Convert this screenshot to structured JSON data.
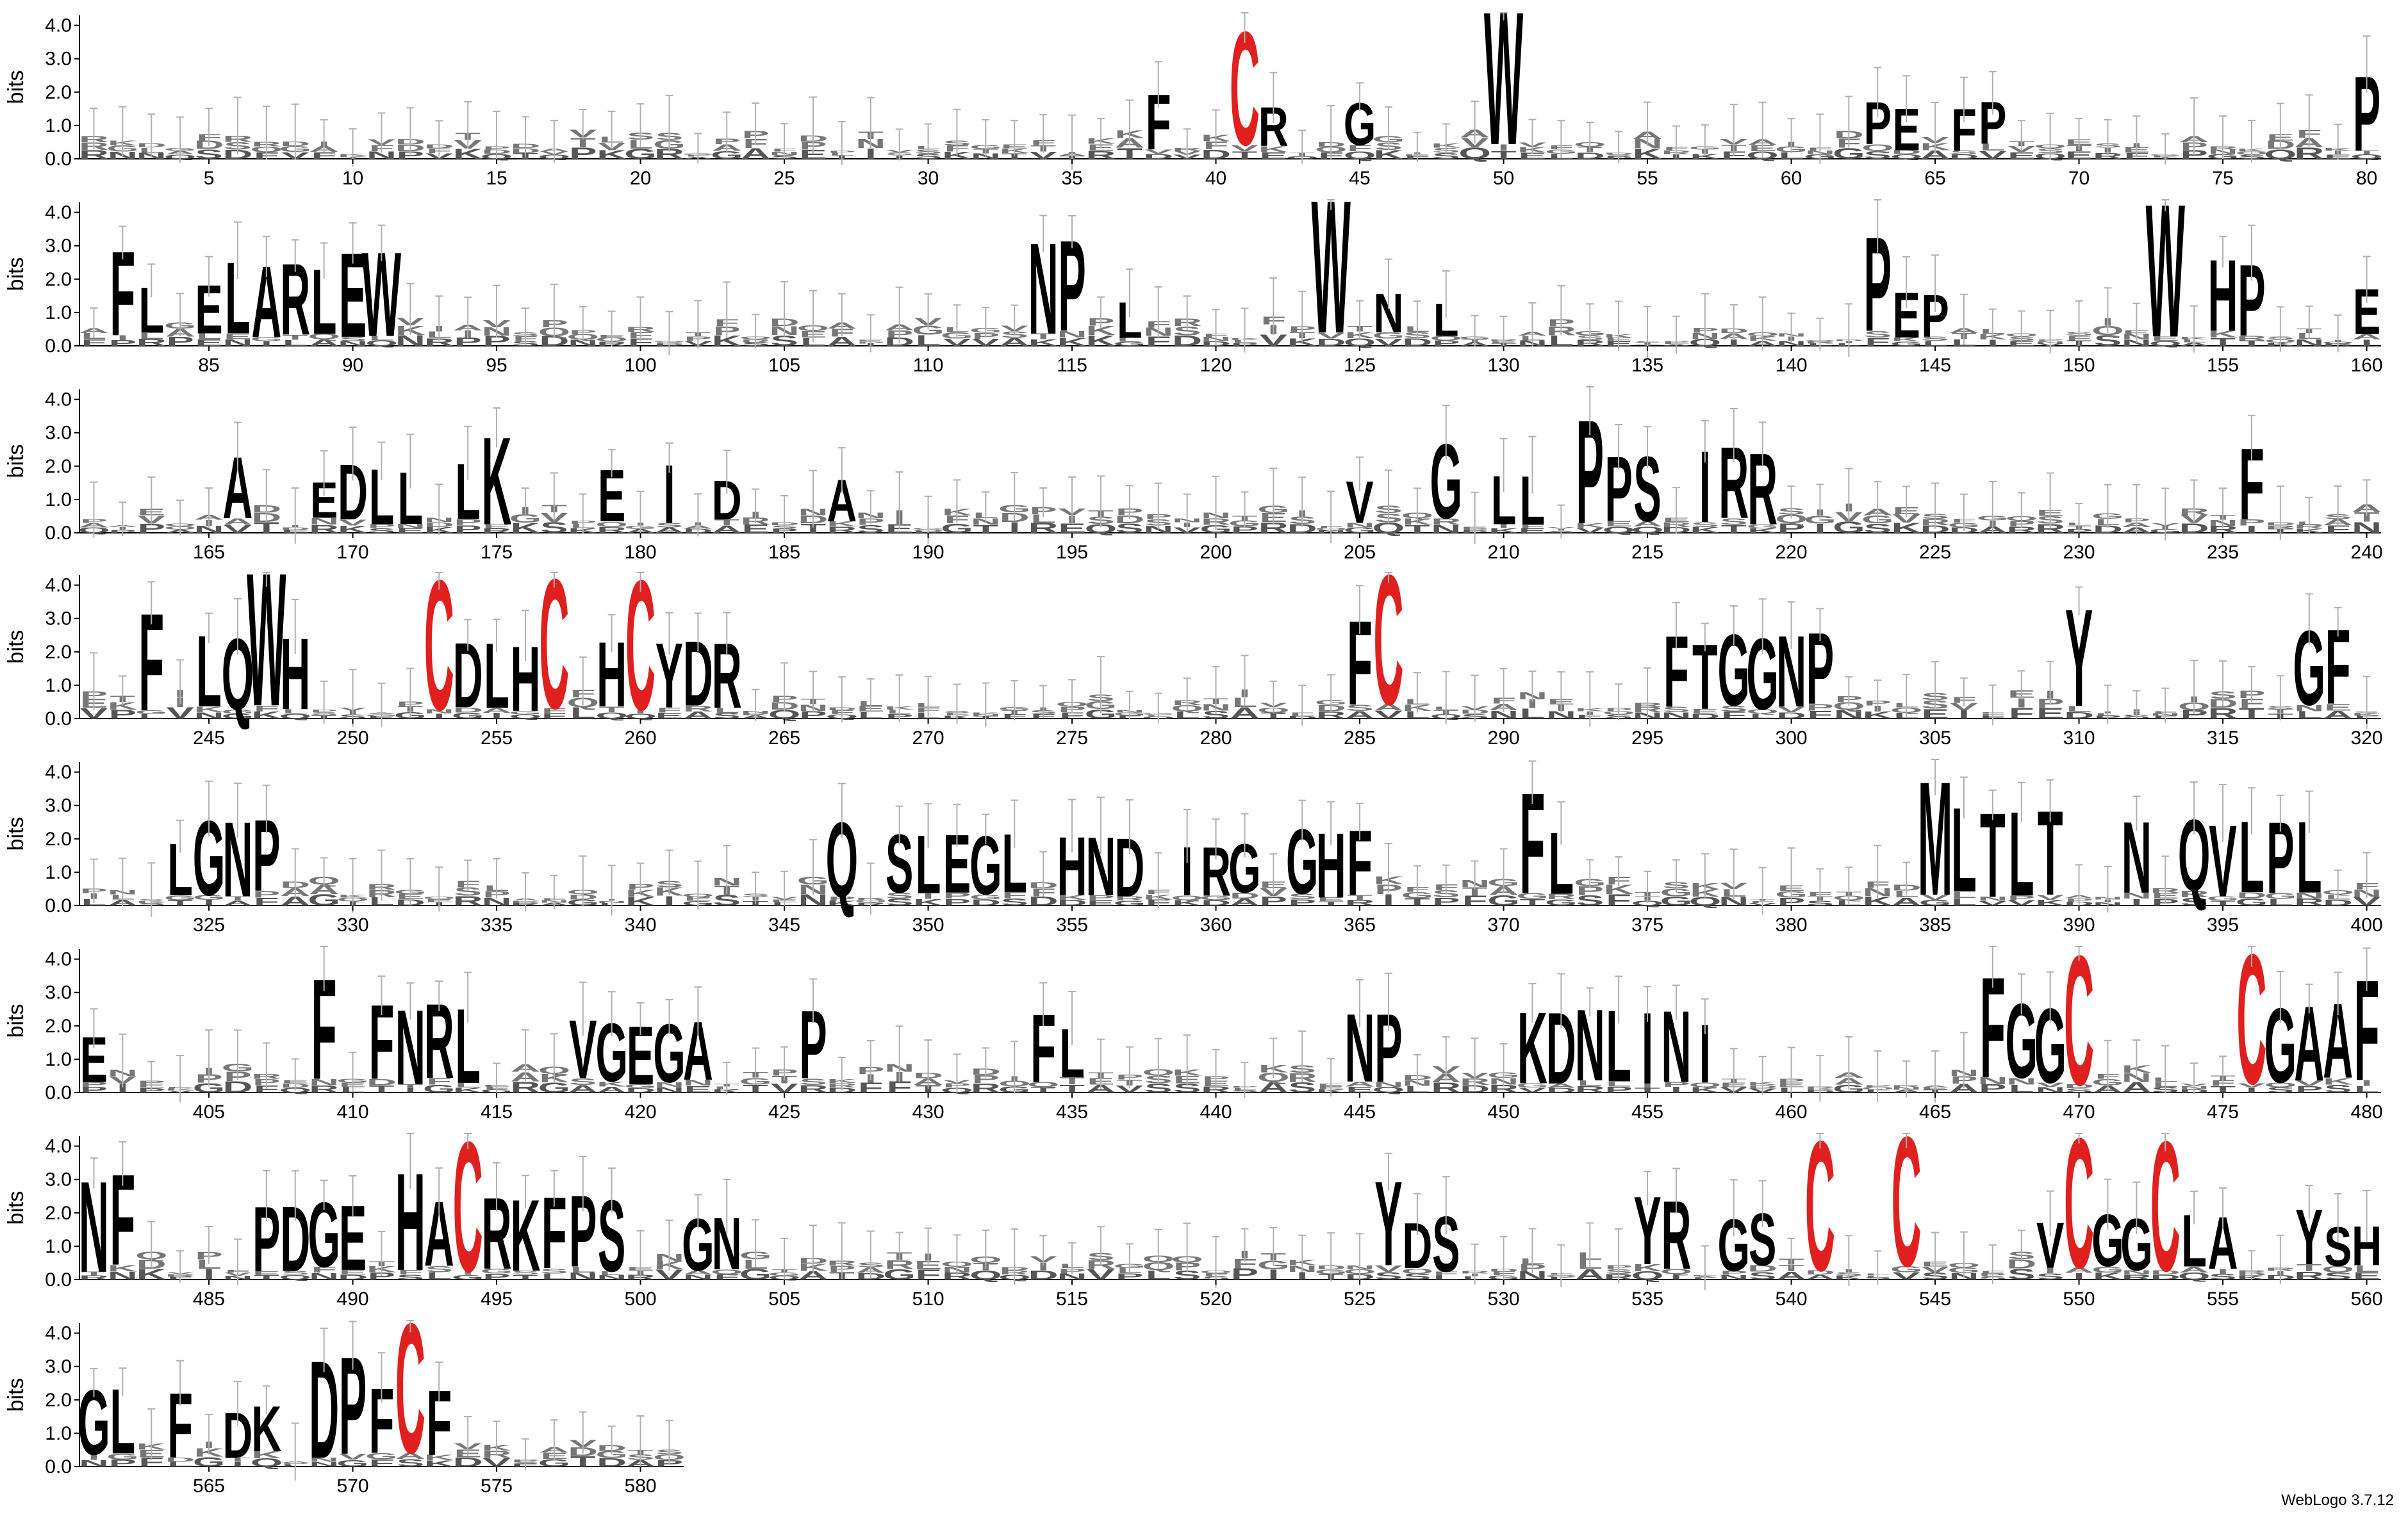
{
  "chart_data": {
    "type": "sequence-logo",
    "ylabel": "bits",
    "ylim": [
      0,
      4.3
    ],
    "y_ticks": [
      "0.0",
      "1.0",
      "2.0",
      "3.0",
      "4.0"
    ],
    "x_range": [
      1,
      581
    ],
    "rows": [
      {
        "start": 1,
        "end": 80
      },
      {
        "start": 81,
        "end": 160
      },
      {
        "start": 161,
        "end": 240
      },
      {
        "start": 241,
        "end": 320
      },
      {
        "start": 321,
        "end": 400
      },
      {
        "start": 401,
        "end": 480
      },
      {
        "start": 481,
        "end": 560
      },
      {
        "start": 561,
        "end": 581
      }
    ],
    "x_tick_labels": [
      "5",
      "10",
      "15",
      "20",
      "25",
      "30",
      "35",
      "40",
      "45",
      "50",
      "55",
      "60",
      "65",
      "70",
      "75",
      "80",
      "85",
      "90",
      "95",
      "100",
      "105",
      "110",
      "115",
      "120",
      "125",
      "130",
      "135",
      "140",
      "145",
      "150",
      "155",
      "160",
      "165",
      "170",
      "175",
      "180",
      "185",
      "190",
      "195",
      "200",
      "205",
      "210",
      "215",
      "220",
      "225",
      "230",
      "235",
      "240",
      "245",
      "250",
      "255",
      "260",
      "265",
      "270",
      "275",
      "280",
      "285",
      "290",
      "295",
      "300",
      "305",
      "310",
      "315",
      "320",
      "325",
      "330",
      "335",
      "340",
      "345",
      "350",
      "355",
      "360",
      "365",
      "370",
      "375",
      "380",
      "385",
      "390",
      "395",
      "400",
      "405",
      "410",
      "415",
      "420",
      "425",
      "430",
      "435",
      "440",
      "445",
      "450",
      "455",
      "460",
      "465",
      "470",
      "475",
      "480",
      "485",
      "490",
      "495",
      "500",
      "505",
      "510",
      "515",
      "520",
      "525",
      "530",
      "535",
      "540",
      "545",
      "550",
      "555",
      "560",
      "565",
      "570",
      "575",
      "580"
    ],
    "colors": {
      "default": "#000000",
      "cysteine": "#e0201e",
      "errorbar": "#b0b0b0"
    },
    "major_letters": [
      {
        "pos": 38,
        "letter": "F",
        "bits": 1.7
      },
      {
        "pos": 41,
        "letter": "C",
        "bits": 3.5
      },
      {
        "pos": 42,
        "letter": "R",
        "bits": 1.2
      },
      {
        "pos": 45,
        "letter": "G",
        "bits": 1.3
      },
      {
        "pos": 50,
        "letter": "W",
        "bits": 4.1
      },
      {
        "pos": 63,
        "letter": "P",
        "bits": 1.3
      },
      {
        "pos": 64,
        "letter": "E",
        "bits": 1.3
      },
      {
        "pos": 66,
        "letter": "F",
        "bits": 1.3
      },
      {
        "pos": 67,
        "letter": "P",
        "bits": 1.3
      },
      {
        "pos": 80,
        "letter": "P",
        "bits": 2.3
      },
      {
        "pos": 82,
        "letter": "F",
        "bits": 2.6
      },
      {
        "pos": 83,
        "letter": "L",
        "bits": 1.4
      },
      {
        "pos": 85,
        "letter": "E",
        "bits": 1.5
      },
      {
        "pos": 86,
        "letter": "L",
        "bits": 2.2
      },
      {
        "pos": 87,
        "letter": "A",
        "bits": 2.2
      },
      {
        "pos": 88,
        "letter": "R",
        "bits": 2.2
      },
      {
        "pos": 89,
        "letter": "L",
        "bits": 2.0
      },
      {
        "pos": 90,
        "letter": "E",
        "bits": 2.6
      },
      {
        "pos": 91,
        "letter": "W",
        "bits": 2.6
      },
      {
        "pos": 114,
        "letter": "N",
        "bits": 2.8
      },
      {
        "pos": 115,
        "letter": "P",
        "bits": 2.8
      },
      {
        "pos": 117,
        "letter": "L",
        "bits": 1.1
      },
      {
        "pos": 124,
        "letter": "W",
        "bits": 4.1
      },
      {
        "pos": 126,
        "letter": "N",
        "bits": 1.2
      },
      {
        "pos": 128,
        "letter": "L",
        "bits": 1.0
      },
      {
        "pos": 143,
        "letter": "P",
        "bits": 2.9
      },
      {
        "pos": 144,
        "letter": "E",
        "bits": 1.4
      },
      {
        "pos": 145,
        "letter": "P",
        "bits": 1.3
      },
      {
        "pos": 153,
        "letter": "W",
        "bits": 4.1
      },
      {
        "pos": 155,
        "letter": "H",
        "bits": 2.2
      },
      {
        "pos": 156,
        "letter": "P",
        "bits": 2.2
      },
      {
        "pos": 160,
        "letter": "E",
        "bits": 1.4
      },
      {
        "pos": 166,
        "letter": "A",
        "bits": 1.9
      },
      {
        "pos": 169,
        "letter": "E",
        "bits": 1.1
      },
      {
        "pos": 170,
        "letter": "D",
        "bits": 1.7
      },
      {
        "pos": 171,
        "letter": "L",
        "bits": 1.7
      },
      {
        "pos": 172,
        "letter": "L",
        "bits": 1.6
      },
      {
        "pos": 174,
        "letter": "L",
        "bits": 1.7
      },
      {
        "pos": 175,
        "letter": "K",
        "bits": 2.7
      },
      {
        "pos": 179,
        "letter": "E",
        "bits": 1.6
      },
      {
        "pos": 181,
        "letter": "I",
        "bits": 1.8
      },
      {
        "pos": 183,
        "letter": "D",
        "bits": 1.2
      },
      {
        "pos": 187,
        "letter": "A",
        "bits": 1.3
      },
      {
        "pos": 205,
        "letter": "V",
        "bits": 1.3
      },
      {
        "pos": 208,
        "letter": "G",
        "bits": 2.3
      },
      {
        "pos": 210,
        "letter": "L",
        "bits": 1.5
      },
      {
        "pos": 211,
        "letter": "L",
        "bits": 1.5
      },
      {
        "pos": 213,
        "letter": "P",
        "bits": 3.2
      },
      {
        "pos": 214,
        "letter": "P",
        "bits": 2.0
      },
      {
        "pos": 215,
        "letter": "S",
        "bits": 2.0
      },
      {
        "pos": 217,
        "letter": "I",
        "bits": 2.2
      },
      {
        "pos": 218,
        "letter": "R",
        "bits": 2.2
      },
      {
        "pos": 219,
        "letter": "R",
        "bits": 2.2
      },
      {
        "pos": 236,
        "letter": "F",
        "bits": 2.2
      },
      {
        "pos": 243,
        "letter": "F",
        "bits": 3.0
      },
      {
        "pos": 245,
        "letter": "L",
        "bits": 2.2
      },
      {
        "pos": 246,
        "letter": "Q",
        "bits": 2.2
      },
      {
        "pos": 247,
        "letter": "W",
        "bits": 4.1
      },
      {
        "pos": 248,
        "letter": "H",
        "bits": 2.2
      },
      {
        "pos": 253,
        "letter": "C",
        "bits": 4.0
      },
      {
        "pos": 254,
        "letter": "D",
        "bits": 2.0
      },
      {
        "pos": 255,
        "letter": "L",
        "bits": 2.0
      },
      {
        "pos": 256,
        "letter": "H",
        "bits": 2.0
      },
      {
        "pos": 257,
        "letter": "C",
        "bits": 4.0
      },
      {
        "pos": 259,
        "letter": "H",
        "bits": 2.0
      },
      {
        "pos": 260,
        "letter": "C",
        "bits": 4.0
      },
      {
        "pos": 261,
        "letter": "Y",
        "bits": 2.0
      },
      {
        "pos": 262,
        "letter": "D",
        "bits": 2.0
      },
      {
        "pos": 263,
        "letter": "R",
        "bits": 2.0
      },
      {
        "pos": 285,
        "letter": "F",
        "bits": 2.6
      },
      {
        "pos": 286,
        "letter": "C",
        "bits": 4.0
      },
      {
        "pos": 296,
        "letter": "F",
        "bits": 2.2
      },
      {
        "pos": 297,
        "letter": "T",
        "bits": 2.0
      },
      {
        "pos": 298,
        "letter": "G",
        "bits": 2.2
      },
      {
        "pos": 299,
        "letter": "G",
        "bits": 2.2
      },
      {
        "pos": 300,
        "letter": "N",
        "bits": 2.2
      },
      {
        "pos": 301,
        "letter": "P",
        "bits": 2.2
      },
      {
        "pos": 310,
        "letter": "Y",
        "bits": 3.0
      },
      {
        "pos": 318,
        "letter": "G",
        "bits": 2.3
      },
      {
        "pos": 319,
        "letter": "F",
        "bits": 2.3
      },
      {
        "pos": 324,
        "letter": "L",
        "bits": 1.6
      },
      {
        "pos": 325,
        "letter": "G",
        "bits": 2.3
      },
      {
        "pos": 326,
        "letter": "N",
        "bits": 2.3
      },
      {
        "pos": 327,
        "letter": "P",
        "bits": 2.2
      },
      {
        "pos": 347,
        "letter": "Q",
        "bits": 2.3
      },
      {
        "pos": 349,
        "letter": "S",
        "bits": 1.8
      },
      {
        "pos": 350,
        "letter": "L",
        "bits": 1.8
      },
      {
        "pos": 351,
        "letter": "E",
        "bits": 1.8
      },
      {
        "pos": 352,
        "letter": "G",
        "bits": 1.8
      },
      {
        "pos": 353,
        "letter": "L",
        "bits": 1.8
      },
      {
        "pos": 355,
        "letter": "H",
        "bits": 1.8
      },
      {
        "pos": 356,
        "letter": "N",
        "bits": 1.8
      },
      {
        "pos": 357,
        "letter": "D",
        "bits": 1.8
      },
      {
        "pos": 359,
        "letter": "I",
        "bits": 1.5
      },
      {
        "pos": 360,
        "letter": "R",
        "bits": 1.5
      },
      {
        "pos": 361,
        "letter": "G",
        "bits": 1.5
      },
      {
        "pos": 363,
        "letter": "G",
        "bits": 2.0
      },
      {
        "pos": 364,
        "letter": "H",
        "bits": 2.0
      },
      {
        "pos": 365,
        "letter": "F",
        "bits": 2.0
      },
      {
        "pos": 371,
        "letter": "F",
        "bits": 3.1
      },
      {
        "pos": 372,
        "letter": "L",
        "bits": 1.9
      },
      {
        "pos": 385,
        "letter": "M",
        "bits": 3.5
      },
      {
        "pos": 386,
        "letter": "L",
        "bits": 2.6
      },
      {
        "pos": 387,
        "letter": "T",
        "bits": 2.6
      },
      {
        "pos": 388,
        "letter": "L",
        "bits": 2.6
      },
      {
        "pos": 389,
        "letter": "T",
        "bits": 2.6
      },
      {
        "pos": 392,
        "letter": "N",
        "bits": 2.2
      },
      {
        "pos": 394,
        "letter": "Q",
        "bits": 2.2
      },
      {
        "pos": 395,
        "letter": "V",
        "bits": 2.2
      },
      {
        "pos": 396,
        "letter": "L",
        "bits": 2.2
      },
      {
        "pos": 397,
        "letter": "P",
        "bits": 2.2
      },
      {
        "pos": 398,
        "letter": "L",
        "bits": 2.2
      },
      {
        "pos": 401,
        "letter": "E",
        "bits": 1.4
      },
      {
        "pos": 409,
        "letter": "F",
        "bits": 3.1
      },
      {
        "pos": 411,
        "letter": "F",
        "bits": 2.3
      },
      {
        "pos": 412,
        "letter": "N",
        "bits": 2.3
      },
      {
        "pos": 413,
        "letter": "R",
        "bits": 2.3
      },
      {
        "pos": 414,
        "letter": "L",
        "bits": 2.3
      },
      {
        "pos": 418,
        "letter": "V",
        "bits": 1.8
      },
      {
        "pos": 419,
        "letter": "G",
        "bits": 1.8
      },
      {
        "pos": 420,
        "letter": "E",
        "bits": 1.8
      },
      {
        "pos": 421,
        "letter": "G",
        "bits": 1.8
      },
      {
        "pos": 422,
        "letter": "A",
        "bits": 1.8
      },
      {
        "pos": 426,
        "letter": "P",
        "bits": 2.1
      },
      {
        "pos": 434,
        "letter": "F",
        "bits": 2.1
      },
      {
        "pos": 435,
        "letter": "L",
        "bits": 1.5
      },
      {
        "pos": 445,
        "letter": "N",
        "bits": 2.1
      },
      {
        "pos": 446,
        "letter": "P",
        "bits": 2.1
      },
      {
        "pos": 451,
        "letter": "K",
        "bits": 2.2
      },
      {
        "pos": 452,
        "letter": "D",
        "bits": 2.2
      },
      {
        "pos": 453,
        "letter": "N",
        "bits": 2.2
      },
      {
        "pos": 454,
        "letter": "L",
        "bits": 2.2
      },
      {
        "pos": 455,
        "letter": "I",
        "bits": 2.2
      },
      {
        "pos": 456,
        "letter": "N",
        "bits": 2.2
      },
      {
        "pos": 457,
        "letter": "I",
        "bits": 1.8
      },
      {
        "pos": 467,
        "letter": "F",
        "bits": 3.1
      },
      {
        "pos": 468,
        "letter": "G",
        "bits": 2.3
      },
      {
        "pos": 469,
        "letter": "G",
        "bits": 2.3
      },
      {
        "pos": 470,
        "letter": "C",
        "bits": 4.0
      },
      {
        "pos": 476,
        "letter": "C",
        "bits": 4.0
      },
      {
        "pos": 477,
        "letter": "G",
        "bits": 2.3
      },
      {
        "pos": 478,
        "letter": "A",
        "bits": 2.3
      },
      {
        "pos": 479,
        "letter": "A",
        "bits": 2.3
      },
      {
        "pos": 480,
        "letter": "F",
        "bits": 3.1
      },
      {
        "pos": 481,
        "letter": "N",
        "bits": 2.8
      },
      {
        "pos": 482,
        "letter": "F",
        "bits": 2.8
      },
      {
        "pos": 487,
        "letter": "P",
        "bits": 2.0
      },
      {
        "pos": 488,
        "letter": "D",
        "bits": 2.0
      },
      {
        "pos": 489,
        "letter": "G",
        "bits": 2.0
      },
      {
        "pos": 490,
        "letter": "E",
        "bits": 2.0
      },
      {
        "pos": 492,
        "letter": "H",
        "bits": 3.0
      },
      {
        "pos": 493,
        "letter": "A",
        "bits": 2.0
      },
      {
        "pos": 494,
        "letter": "C",
        "bits": 4.0
      },
      {
        "pos": 495,
        "letter": "R",
        "bits": 2.2
      },
      {
        "pos": 496,
        "letter": "K",
        "bits": 2.2
      },
      {
        "pos": 497,
        "letter": "F",
        "bits": 2.2
      },
      {
        "pos": 498,
        "letter": "P",
        "bits": 2.2
      },
      {
        "pos": 499,
        "letter": "S",
        "bits": 2.2
      },
      {
        "pos": 502,
        "letter": "G",
        "bits": 1.6
      },
      {
        "pos": 503,
        "letter": "N",
        "bits": 1.6
      },
      {
        "pos": 526,
        "letter": "Y",
        "bits": 2.6
      },
      {
        "pos": 527,
        "letter": "D",
        "bits": 1.4
      },
      {
        "pos": 528,
        "letter": "S",
        "bits": 1.7
      },
      {
        "pos": 535,
        "letter": "Y",
        "bits": 2.1
      },
      {
        "pos": 536,
        "letter": "R",
        "bits": 2.1
      },
      {
        "pos": 538,
        "letter": "G",
        "bits": 1.6
      },
      {
        "pos": 539,
        "letter": "S",
        "bits": 1.6
      },
      {
        "pos": 541,
        "letter": "C",
        "bits": 4.0
      },
      {
        "pos": 544,
        "letter": "C",
        "bits": 4.0
      },
      {
        "pos": 549,
        "letter": "V",
        "bits": 1.4
      },
      {
        "pos": 550,
        "letter": "C",
        "bits": 4.0
      },
      {
        "pos": 551,
        "letter": "G",
        "bits": 1.6
      },
      {
        "pos": 552,
        "letter": "G",
        "bits": 1.6
      },
      {
        "pos": 553,
        "letter": "C",
        "bits": 4.0
      },
      {
        "pos": 554,
        "letter": "L",
        "bits": 1.6
      },
      {
        "pos": 555,
        "letter": "A",
        "bits": 1.6
      },
      {
        "pos": 558,
        "letter": "Y",
        "bits": 1.7
      },
      {
        "pos": 559,
        "letter": "S",
        "bits": 1.2
      },
      {
        "pos": 560,
        "letter": "H",
        "bits": 1.2
      },
      {
        "pos": 561,
        "letter": "G",
        "bits": 2.0
      },
      {
        "pos": 562,
        "letter": "L",
        "bits": 2.0
      },
      {
        "pos": 564,
        "letter": "F",
        "bits": 2.0
      },
      {
        "pos": 566,
        "letter": "D",
        "bits": 1.4
      },
      {
        "pos": 567,
        "letter": "K",
        "bits": 1.4
      },
      {
        "pos": 569,
        "letter": "D",
        "bits": 3.0
      },
      {
        "pos": 570,
        "letter": "P",
        "bits": 3.0
      },
      {
        "pos": 571,
        "letter": "F",
        "bits": 2.0
      },
      {
        "pos": 572,
        "letter": "C",
        "bits": 4.0
      },
      {
        "pos": 573,
        "letter": "F",
        "bits": 2.0
      }
    ]
  },
  "software_credit": "WebLogo 3.7.12"
}
